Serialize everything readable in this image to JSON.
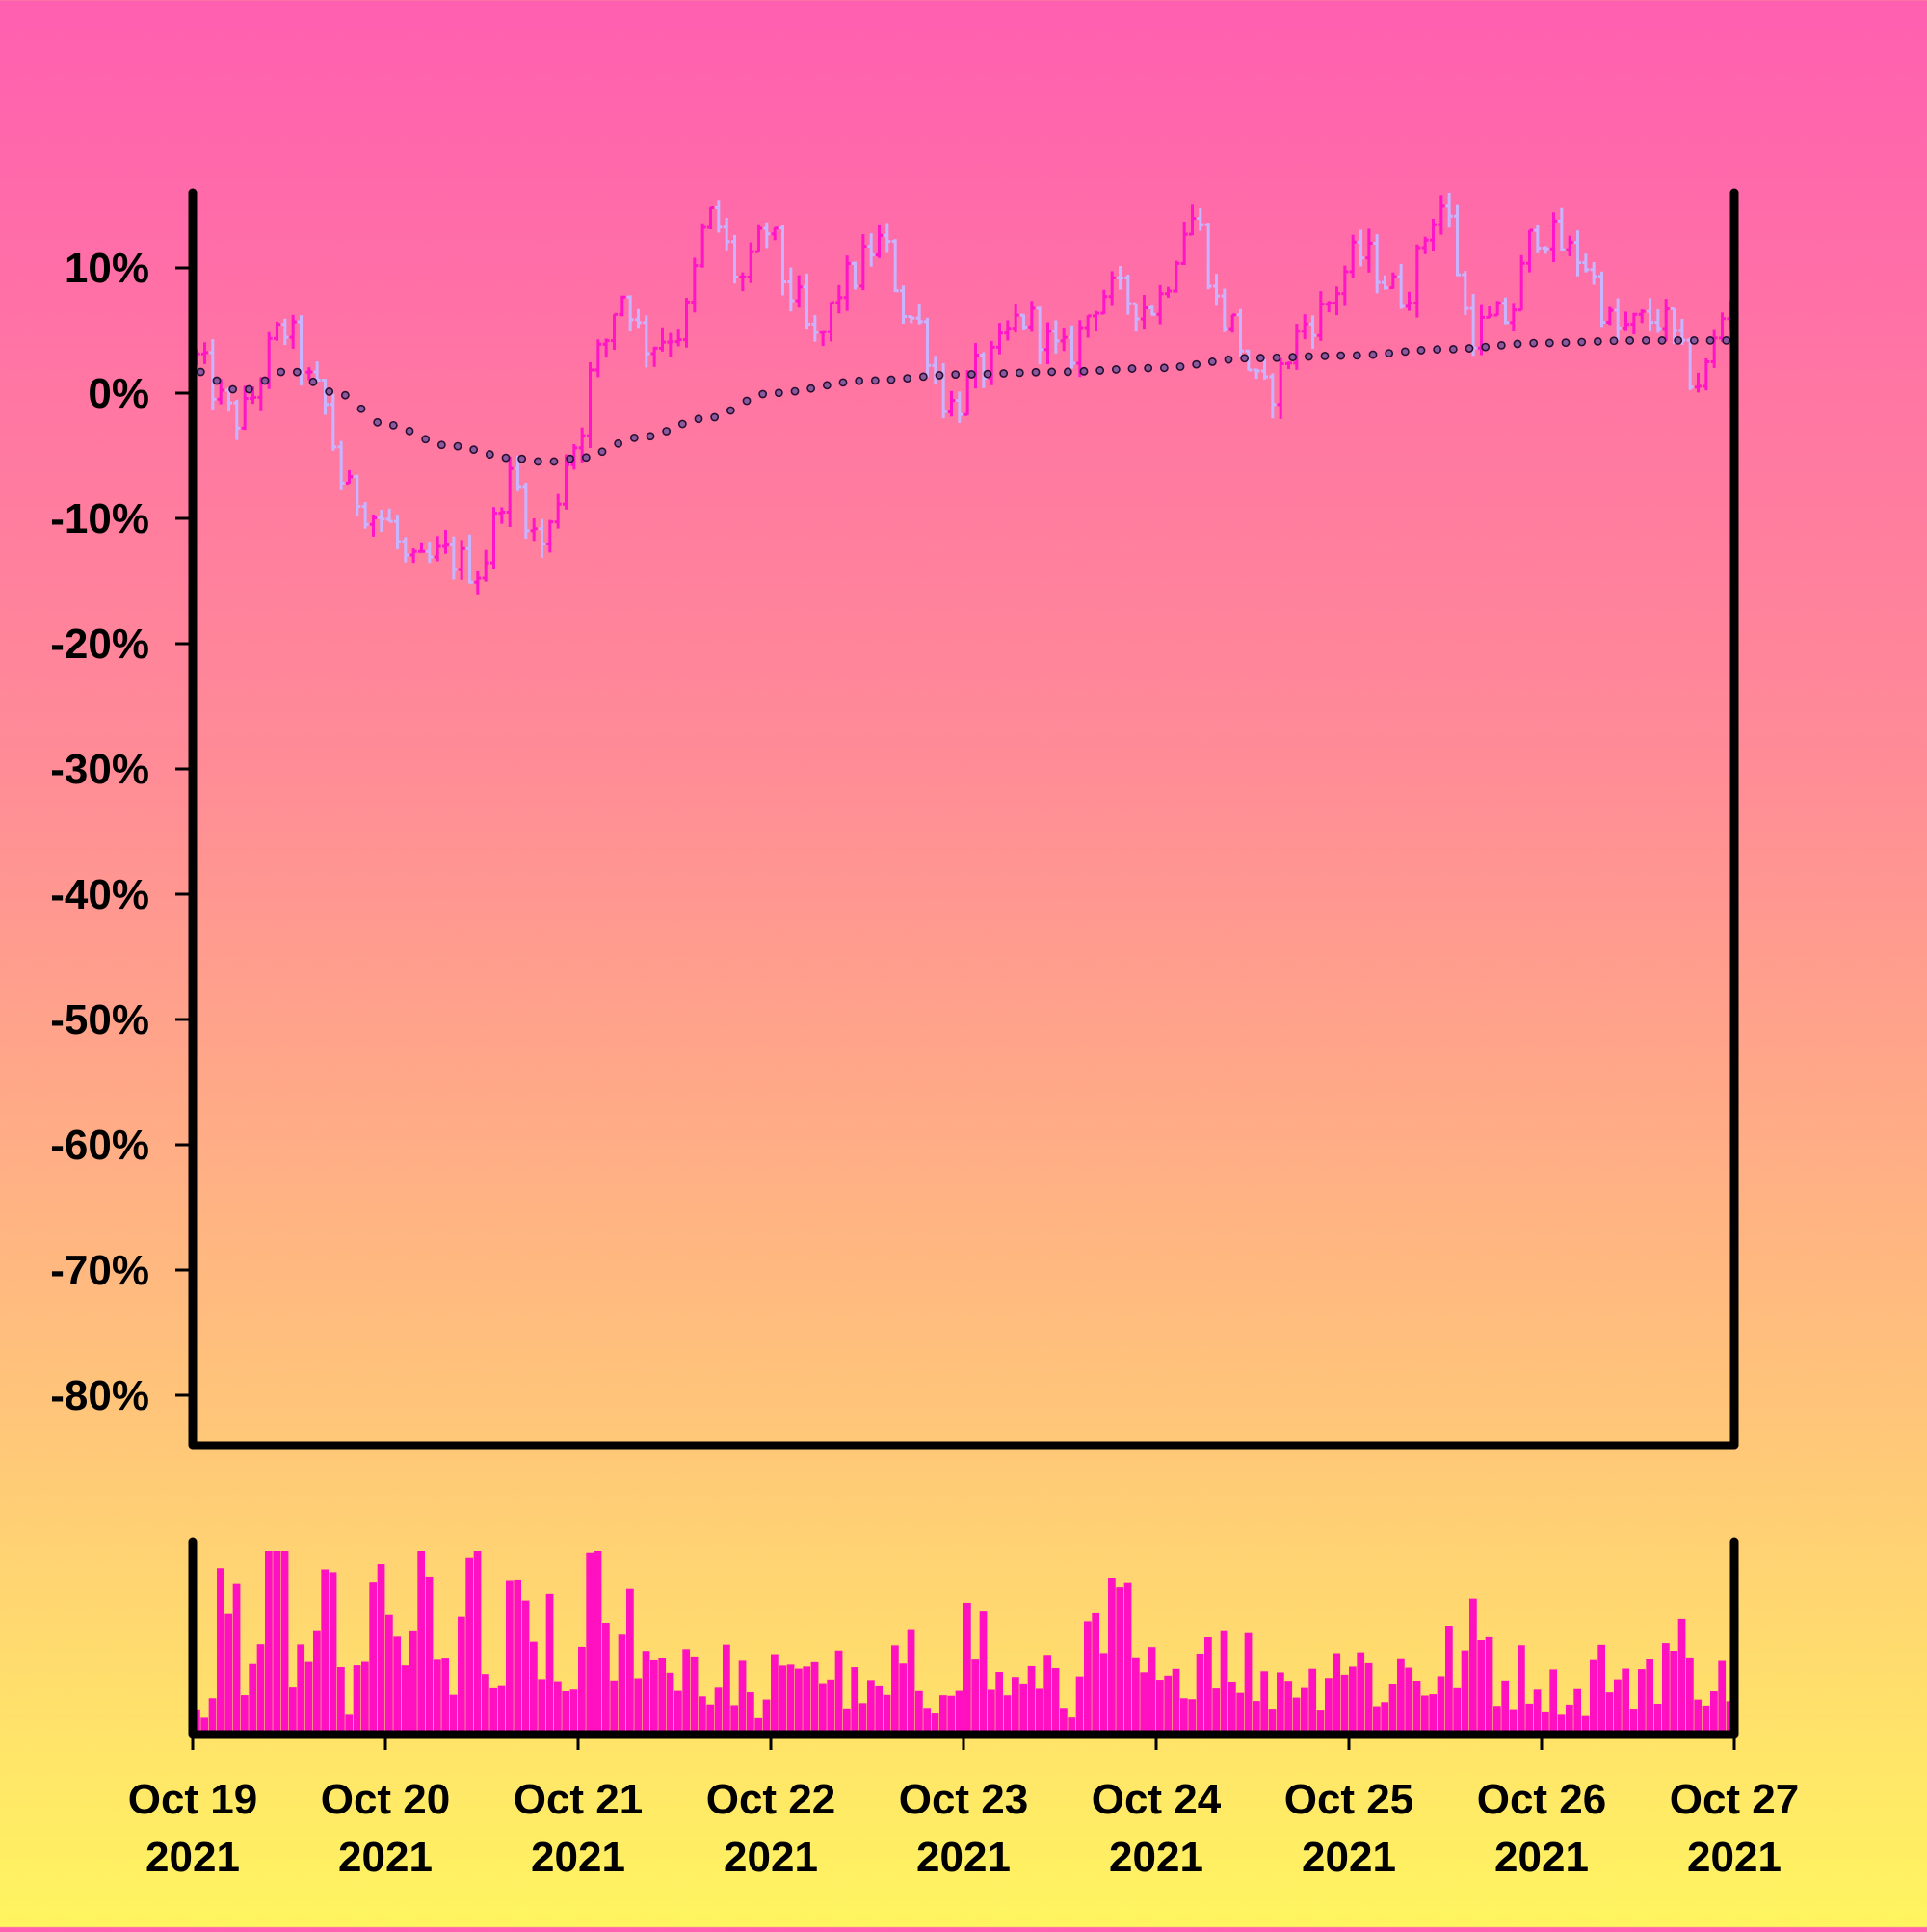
{
  "chart_data": [
    {
      "type": "ohlc",
      "title": "",
      "xlabel": "",
      "ylabel": "",
      "x_range": [
        "2021-10-19",
        "2021-10-27"
      ],
      "ylim": [
        -0.84,
        0.16
      ],
      "y_ticks": [
        0.1,
        0.0,
        -0.1,
        -0.2,
        -0.3,
        -0.4,
        -0.5,
        -0.6,
        -0.7,
        -0.8
      ],
      "y_tick_labels": [
        "10%",
        "0%",
        "-10%",
        "-20%",
        "-30%",
        "-40%",
        "-50%",
        "-60%",
        "-70%",
        "-80%"
      ],
      "x_ticks": [
        "2021-10-19",
        "2021-10-20",
        "2021-10-21",
        "2021-10-22",
        "2021-10-23",
        "2021-10-24",
        "2021-10-25",
        "2021-10-26",
        "2021-10-27"
      ],
      "x_tick_labels": [
        [
          "Oct 19",
          "2021"
        ],
        [
          "Oct 20",
          "2021"
        ],
        [
          "Oct 21",
          "2021"
        ],
        [
          "Oct 22",
          "2021"
        ],
        [
          "Oct 23",
          "2021"
        ],
        [
          "Oct 24",
          "2021"
        ],
        [
          "Oct 25",
          "2021"
        ],
        [
          "Oct 26",
          "2021"
        ],
        [
          "Oct 27",
          "2021"
        ]
      ],
      "grid": false,
      "bar_interval_hours": 1,
      "close_path": [
        {
          "x": "2021-10-19 00:00",
          "y": 0.03
        },
        {
          "x": "2021-10-19 06:00",
          "y": -0.02
        },
        {
          "x": "2021-10-19 12:00",
          "y": 0.05
        },
        {
          "x": "2021-10-19 16:00",
          "y": 0.0
        },
        {
          "x": "2021-10-19 20:00",
          "y": -0.08
        },
        {
          "x": "2021-10-20 00:00",
          "y": -0.1
        },
        {
          "x": "2021-10-20 04:00",
          "y": -0.14
        },
        {
          "x": "2021-10-20 08:00",
          "y": -0.13
        },
        {
          "x": "2021-10-20 12:00",
          "y": -0.14
        },
        {
          "x": "2021-10-20 16:00",
          "y": -0.07
        },
        {
          "x": "2021-10-20 20:00",
          "y": -0.12
        },
        {
          "x": "2021-10-21 00:00",
          "y": -0.04
        },
        {
          "x": "2021-10-21 03:00",
          "y": 0.03
        },
        {
          "x": "2021-10-21 06:00",
          "y": 0.08
        },
        {
          "x": "2021-10-21 09:00",
          "y": 0.04
        },
        {
          "x": "2021-10-21 13:00",
          "y": 0.05
        },
        {
          "x": "2021-10-21 17:00",
          "y": 0.14
        },
        {
          "x": "2021-10-21 21:00",
          "y": 0.09
        },
        {
          "x": "2021-10-22 00:00",
          "y": 0.13
        },
        {
          "x": "2021-10-22 03:00",
          "y": 0.08
        },
        {
          "x": "2021-10-22 06:00",
          "y": 0.04
        },
        {
          "x": "2021-10-22 10:00",
          "y": 0.09
        },
        {
          "x": "2021-10-22 14:00",
          "y": 0.12
        },
        {
          "x": "2021-10-22 18:00",
          "y": 0.06
        },
        {
          "x": "2021-10-22 23:00",
          "y": -0.01
        },
        {
          "x": "2021-10-23 03:00",
          "y": 0.02
        },
        {
          "x": "2021-10-23 08:00",
          "y": 0.06
        },
        {
          "x": "2021-10-23 13:00",
          "y": 0.03
        },
        {
          "x": "2021-10-23 18:00",
          "y": 0.08
        },
        {
          "x": "2021-10-24 00:00",
          "y": 0.07
        },
        {
          "x": "2021-10-24 05:00",
          "y": 0.14
        },
        {
          "x": "2021-10-24 09:00",
          "y": 0.06
        },
        {
          "x": "2021-10-24 14:00",
          "y": 0.0
        },
        {
          "x": "2021-10-24 20:00",
          "y": 0.06
        },
        {
          "x": "2021-10-25 02:00",
          "y": 0.11
        },
        {
          "x": "2021-10-25 07:00",
          "y": 0.08
        },
        {
          "x": "2021-10-25 12:00",
          "y": 0.15
        },
        {
          "x": "2021-10-25 16:00",
          "y": 0.05
        },
        {
          "x": "2021-10-25 20:00",
          "y": 0.06
        },
        {
          "x": "2021-10-26 00:00",
          "y": 0.13
        },
        {
          "x": "2021-10-26 05:00",
          "y": 0.11
        },
        {
          "x": "2021-10-26 10:00",
          "y": 0.05
        },
        {
          "x": "2021-10-26 15:00",
          "y": 0.06
        },
        {
          "x": "2021-10-26 20:00",
          "y": 0.01
        },
        {
          "x": "2021-10-27 00:00",
          "y": 0.07
        }
      ],
      "moving_average": [
        {
          "x": "2021-10-19 00:00",
          "y": 0.018
        },
        {
          "x": "2021-10-19 06:00",
          "y": 0.002
        },
        {
          "x": "2021-10-19 12:00",
          "y": 0.018
        },
        {
          "x": "2021-10-19 18:00",
          "y": 0.0
        },
        {
          "x": "2021-10-20 00:00",
          "y": -0.025
        },
        {
          "x": "2021-10-20 08:00",
          "y": -0.042
        },
        {
          "x": "2021-10-20 16:00",
          "y": -0.052
        },
        {
          "x": "2021-10-20 20:00",
          "y": -0.055
        },
        {
          "x": "2021-10-21 00:00",
          "y": -0.052
        },
        {
          "x": "2021-10-21 08:00",
          "y": -0.035
        },
        {
          "x": "2021-10-21 16:00",
          "y": -0.02
        },
        {
          "x": "2021-10-22 00:00",
          "y": 0.0
        },
        {
          "x": "2021-10-22 12:00",
          "y": 0.01
        },
        {
          "x": "2021-10-23 00:00",
          "y": 0.015
        },
        {
          "x": "2021-10-23 12:00",
          "y": 0.017
        },
        {
          "x": "2021-10-24 00:00",
          "y": 0.02
        },
        {
          "x": "2021-10-24 12:00",
          "y": 0.028
        },
        {
          "x": "2021-10-25 00:00",
          "y": 0.03
        },
        {
          "x": "2021-10-25 12:00",
          "y": 0.035
        },
        {
          "x": "2021-10-26 00:00",
          "y": 0.04
        },
        {
          "x": "2021-10-26 12:00",
          "y": 0.042
        },
        {
          "x": "2021-10-27 00:00",
          "y": 0.042
        }
      ],
      "volume_profile": [
        0.2,
        0.8,
        0.6,
        0.9,
        0.5,
        0.7,
        0.3,
        0.85,
        0.55,
        0.9,
        0.4,
        0.95,
        0.35,
        0.7,
        0.6,
        0.3,
        1.0,
        0.5,
        0.75,
        0.45,
        0.55,
        0.3,
        0.4,
        0.2,
        0.35,
        0.55,
        0.4,
        0.3,
        0.25,
        0.45,
        0.2,
        0.5,
        0.65,
        0.35,
        0.3,
        0.45,
        0.25,
        0.6,
        0.7,
        0.4,
        0.3,
        0.55,
        0.65,
        0.5,
        0.3,
        0.4,
        0.35,
        0.55,
        0.45,
        0.3,
        0.45,
        0.35,
        0.5,
        0.6,
        0.35,
        0.4,
        0.3,
        0.25,
        0.45,
        0.3,
        0.45,
        0.55,
        0.4,
        0.35,
        0.3,
        0.5,
        0.3,
        0.4,
        0.45,
        0.5,
        0.25,
        0.4
      ],
      "colors": {
        "bar_up": "#ff14c8",
        "bar_down": "#c8b4ff",
        "moving_average_line": "#2a1030",
        "moving_average_marker": "#8a5aa0",
        "volume": "#ff10c0",
        "axes": "#000000"
      }
    }
  ]
}
